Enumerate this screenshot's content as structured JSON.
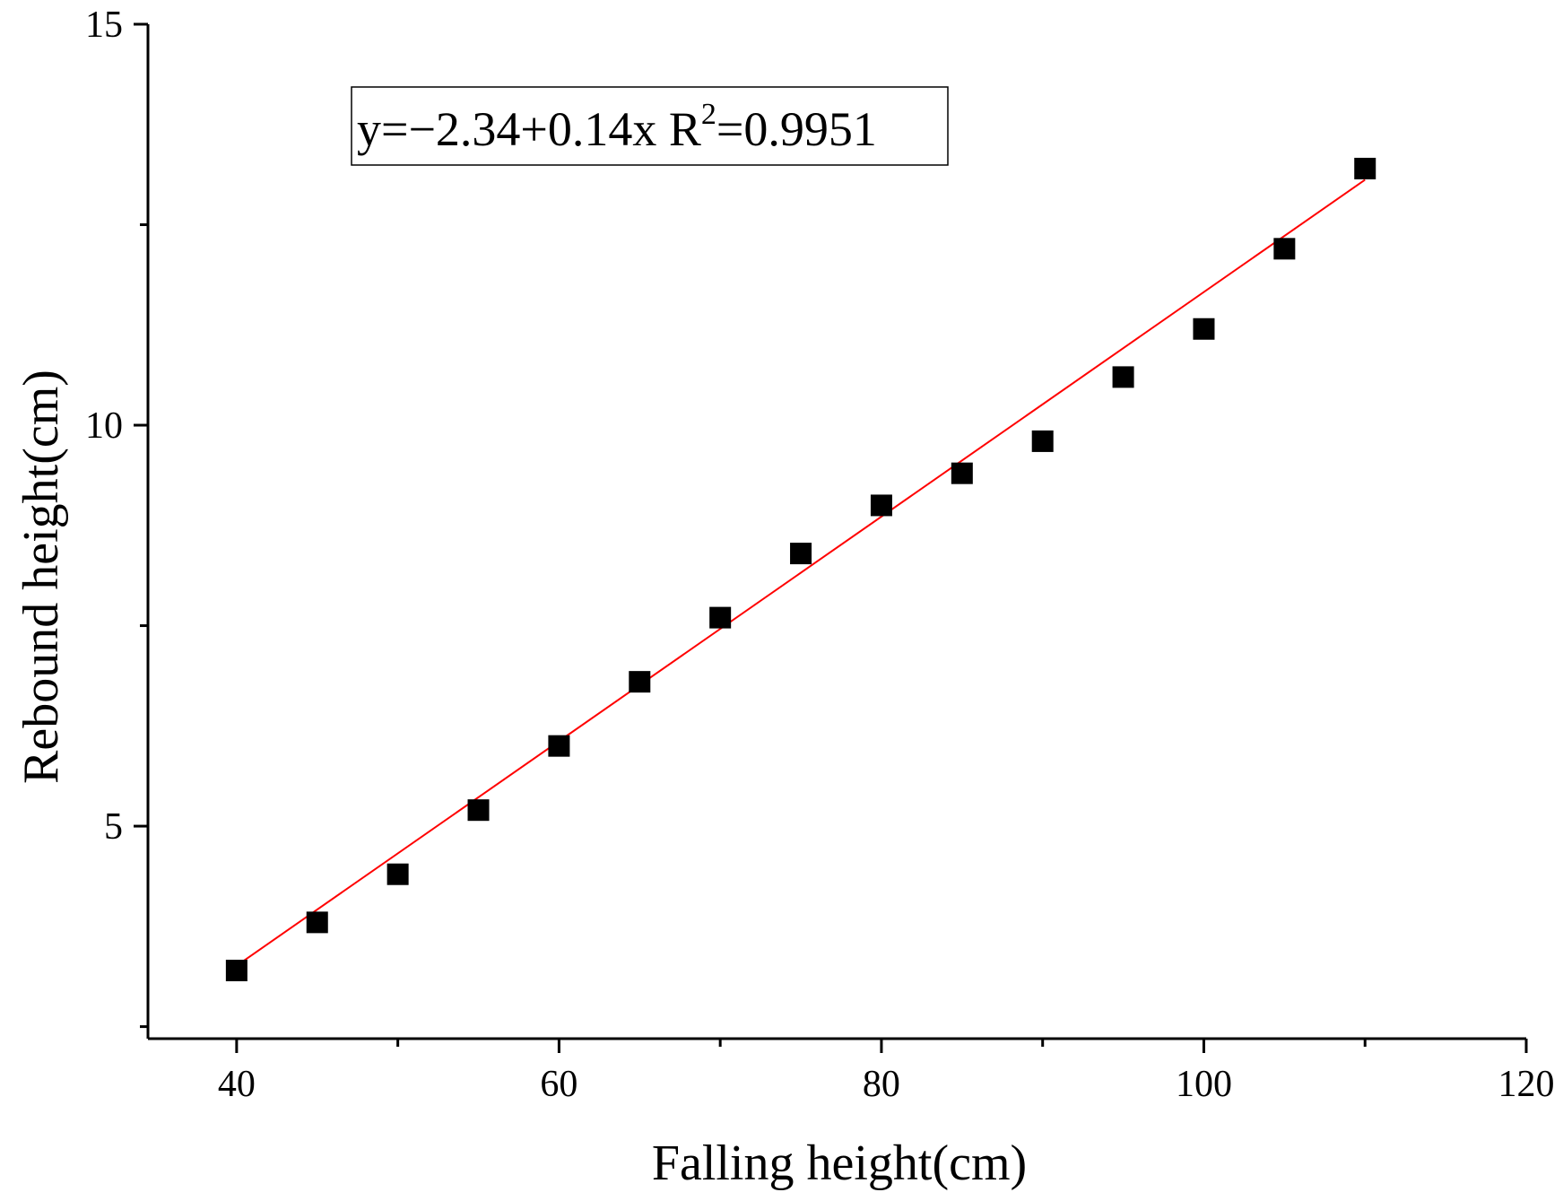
{
  "chart_data": {
    "type": "scatter",
    "title": "",
    "xlabel": "Falling height(cm)",
    "ylabel": "Rebound height(cm)",
    "xlim": [
      34.5,
      120
    ],
    "ylim": [
      2.35,
      15
    ],
    "x_ticks": [
      40,
      60,
      80,
      100,
      120
    ],
    "x_minor_ticks": [
      50,
      70,
      90,
      110
    ],
    "y_ticks": [
      5,
      10,
      15
    ],
    "y_minor_ticks": [
      2.5,
      7.5,
      12.5
    ],
    "grid": false,
    "legend": "none",
    "marker": "square",
    "marker_color": "#000000",
    "fit_color": "#ff0000",
    "series": [
      {
        "x": [
          40,
          45,
          50,
          55,
          60,
          65,
          70,
          75,
          80,
          85,
          90,
          95,
          100,
          105,
          110
        ],
        "y": [
          3.2,
          3.8,
          4.4,
          5.2,
          6.0,
          6.8,
          7.6,
          8.4,
          9.0,
          9.4,
          9.8,
          10.6,
          11.2,
          12.2,
          13.2
        ]
      }
    ],
    "fit": {
      "intercept": -2.34,
      "slope": 0.14,
      "x_range": [
        40,
        110
      ]
    },
    "annotation": {
      "prefix": "y=−2.34+0.14x R",
      "superscript": "2",
      "suffix": "=0.9951"
    }
  }
}
